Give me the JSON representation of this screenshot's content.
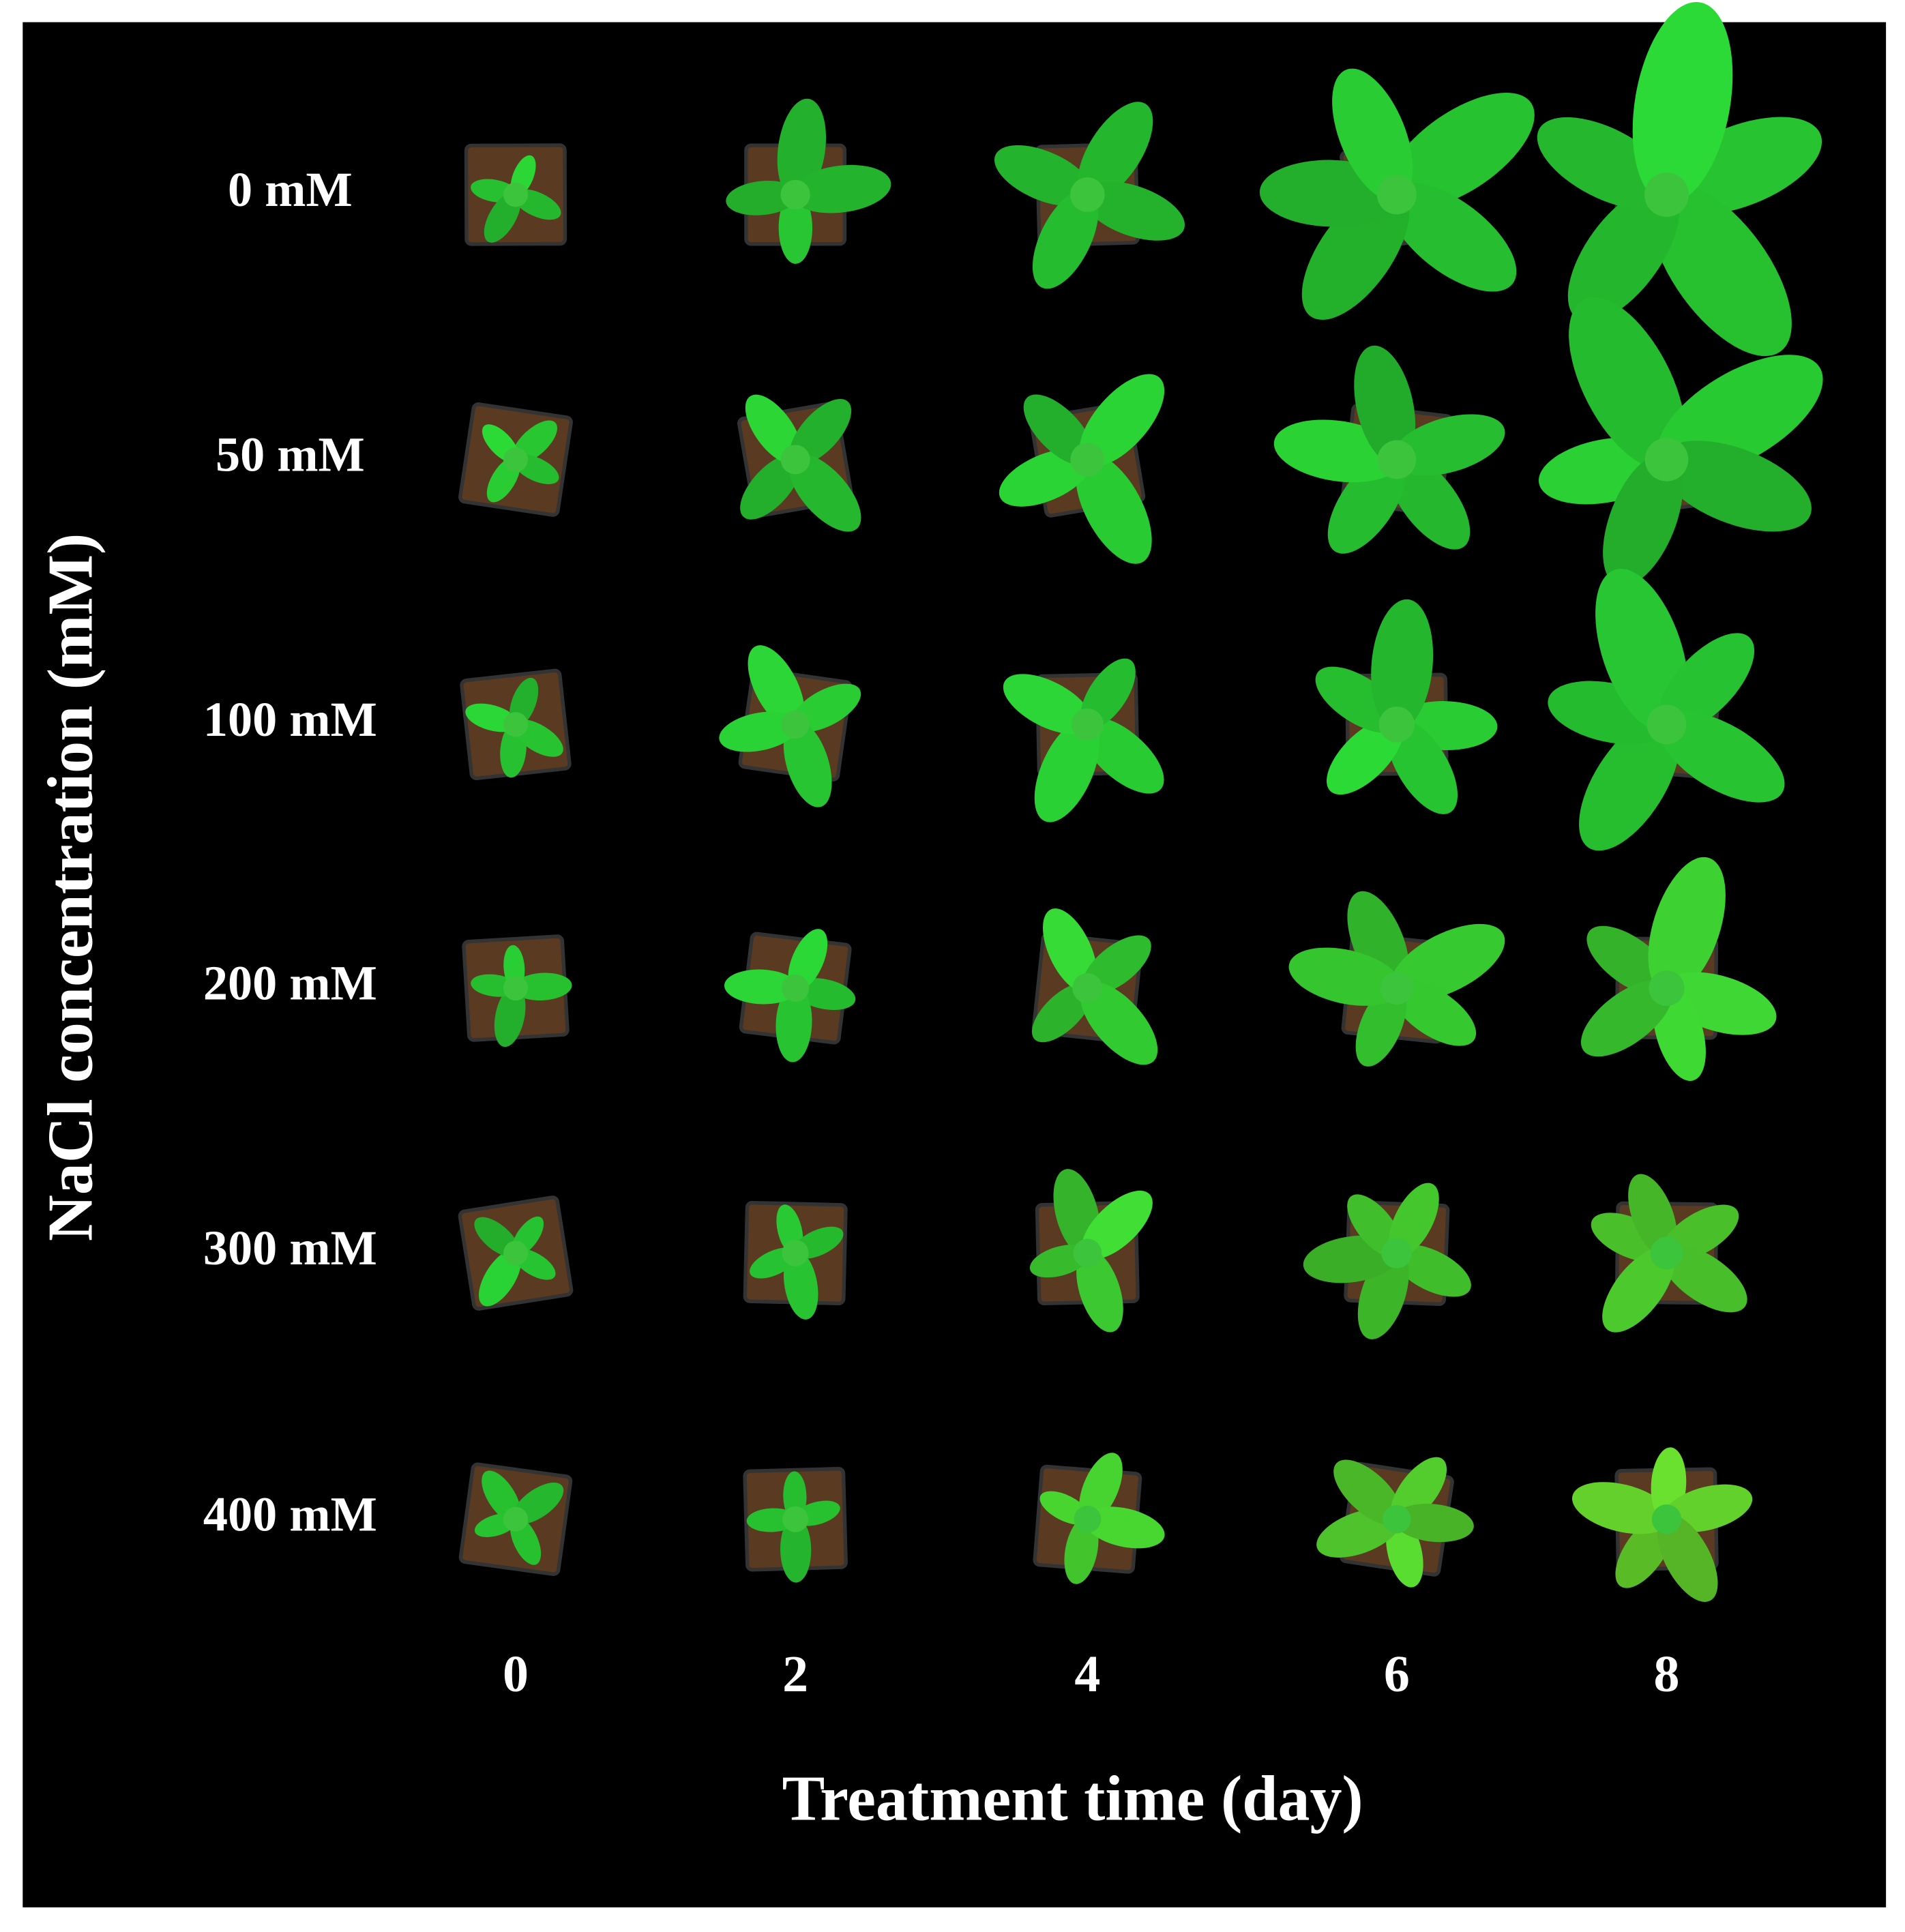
{
  "y_axis_title": "NaCl concentration (mM)",
  "x_axis_title": "Treatment time (day)",
  "rows": [
    "0 mM",
    "50 mM",
    "100 mM",
    "200 mM",
    "300 mM",
    "400 mM"
  ],
  "columns": [
    "0",
    "2",
    "4",
    "6",
    "8"
  ]
}
